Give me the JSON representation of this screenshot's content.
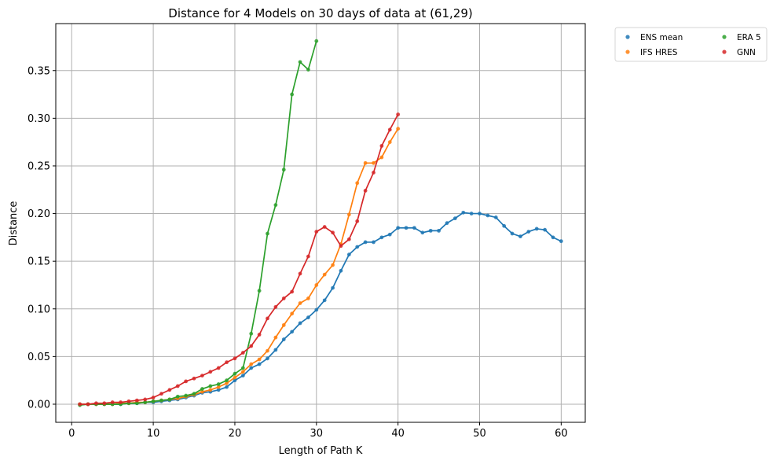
{
  "chart_data": {
    "type": "line",
    "title": "Distance for 4 Models on 30 days of data at (61,29)",
    "xlabel": "Length of Path K",
    "ylabel": "Distance",
    "xlim": [
      -1.95,
      62.95
    ],
    "ylim": [
      -0.019,
      0.3993
    ],
    "xticks": [
      0,
      10,
      20,
      30,
      40,
      50,
      60
    ],
    "yticks": [
      0.0,
      0.05,
      0.1,
      0.15,
      0.2,
      0.25,
      0.3,
      0.35
    ],
    "xtick_labels": [
      "0",
      "10",
      "20",
      "30",
      "40",
      "50",
      "60"
    ],
    "ytick_labels": [
      "0.00",
      "0.05",
      "0.10",
      "0.15",
      "0.20",
      "0.25",
      "0.30",
      "0.35"
    ],
    "grid": true,
    "legend": {
      "placement": "outside-upper-right",
      "columns": 2
    },
    "series": [
      {
        "name": "ENS mean",
        "color": "#1f77b4",
        "x": [
          1,
          2,
          3,
          4,
          5,
          6,
          7,
          8,
          9,
          10,
          11,
          12,
          13,
          14,
          15,
          16,
          17,
          18,
          19,
          20,
          21,
          22,
          23,
          24,
          25,
          26,
          27,
          28,
          29,
          30,
          31,
          32,
          33,
          34,
          35,
          36,
          37,
          38,
          39,
          40,
          41,
          42,
          43,
          44,
          45,
          46,
          47,
          48,
          49,
          50,
          51,
          52,
          53,
          54,
          55,
          56,
          57,
          58,
          59,
          60
        ],
        "y": [
          0.0,
          0.0,
          0.0,
          0.0,
          0.0,
          0.0,
          0.001,
          0.001,
          0.002,
          0.002,
          0.003,
          0.004,
          0.005,
          0.007,
          0.009,
          0.012,
          0.013,
          0.015,
          0.018,
          0.025,
          0.03,
          0.038,
          0.042,
          0.048,
          0.057,
          0.068,
          0.076,
          0.085,
          0.091,
          0.099,
          0.109,
          0.122,
          0.14,
          0.157,
          0.165,
          0.17,
          0.17,
          0.175,
          0.178,
          0.185,
          0.185,
          0.185,
          0.18,
          0.182,
          0.182,
          0.19,
          0.195,
          0.201,
          0.2,
          0.2,
          0.198,
          0.196,
          0.187,
          0.179,
          0.176,
          0.181,
          0.184,
          0.183,
          0.175,
          0.171
        ]
      },
      {
        "name": "IFS HRES",
        "color": "#ff7f0e",
        "x": [
          1,
          2,
          3,
          4,
          5,
          6,
          7,
          8,
          9,
          10,
          11,
          12,
          13,
          14,
          15,
          16,
          17,
          18,
          19,
          20,
          21,
          22,
          23,
          24,
          25,
          26,
          27,
          28,
          29,
          30,
          31,
          32,
          33,
          34,
          35,
          36,
          37,
          38,
          39,
          40
        ],
        "y": [
          0.0,
          0.0,
          0.0,
          0.0,
          0.0,
          0.001,
          0.001,
          0.002,
          0.002,
          0.003,
          0.004,
          0.005,
          0.006,
          0.008,
          0.01,
          0.013,
          0.015,
          0.018,
          0.022,
          0.028,
          0.034,
          0.042,
          0.047,
          0.056,
          0.07,
          0.083,
          0.095,
          0.106,
          0.111,
          0.125,
          0.136,
          0.146,
          0.168,
          0.199,
          0.232,
          0.253,
          0.253,
          0.259,
          0.275,
          0.289
        ]
      },
      {
        "name": "ERA 5",
        "color": "#2ca02c",
        "x": [
          1,
          2,
          3,
          4,
          5,
          6,
          7,
          8,
          9,
          10,
          11,
          12,
          13,
          14,
          15,
          16,
          17,
          18,
          19,
          20,
          21,
          22,
          23,
          24,
          25,
          26,
          27,
          28,
          29,
          30
        ],
        "y": [
          -0.001,
          0.0,
          0.0,
          0.0,
          0.0,
          0.0,
          0.001,
          0.001,
          0.002,
          0.003,
          0.004,
          0.005,
          0.008,
          0.009,
          0.011,
          0.016,
          0.019,
          0.021,
          0.025,
          0.032,
          0.038,
          0.074,
          0.119,
          0.179,
          0.209,
          0.246,
          0.325,
          0.359,
          0.351,
          0.381
        ]
      },
      {
        "name": "GNN",
        "color": "#d62728",
        "x": [
          1,
          2,
          3,
          4,
          5,
          6,
          7,
          8,
          9,
          10,
          11,
          12,
          13,
          14,
          15,
          16,
          17,
          18,
          19,
          20,
          21,
          22,
          23,
          24,
          25,
          26,
          27,
          28,
          29,
          30,
          31,
          32,
          33,
          34,
          35,
          36,
          37,
          38,
          39,
          40
        ],
        "y": [
          0.0,
          0.0,
          0.001,
          0.001,
          0.002,
          0.002,
          0.003,
          0.004,
          0.005,
          0.007,
          0.011,
          0.015,
          0.019,
          0.024,
          0.027,
          0.03,
          0.034,
          0.038,
          0.044,
          0.048,
          0.054,
          0.061,
          0.073,
          0.09,
          0.102,
          0.111,
          0.118,
          0.137,
          0.155,
          0.181,
          0.186,
          0.18,
          0.166,
          0.173,
          0.192,
          0.224,
          0.243,
          0.271,
          0.288,
          0.304
        ]
      }
    ]
  }
}
